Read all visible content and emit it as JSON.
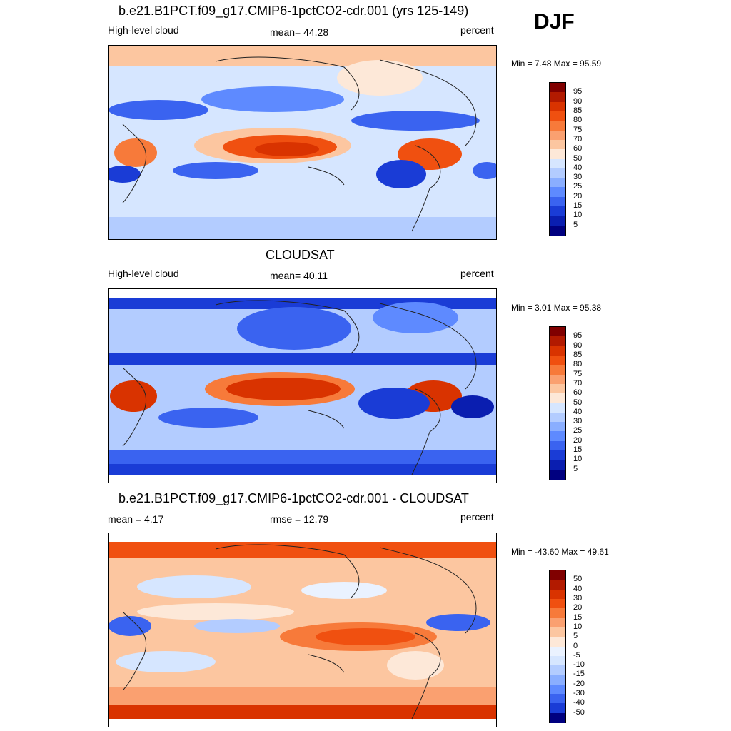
{
  "season": "DJF",
  "panels": [
    {
      "title": "b.e21.B1PCT.f09_g17.CMIP6-1pctCO2-cdr.001 (yrs 125-149)",
      "left": "High-level cloud",
      "center": "mean=  44.28",
      "right": "percent",
      "minmax": "Min =   7.48 Max =  95.59"
    },
    {
      "title": "CLOUDSAT",
      "left": "High-level cloud",
      "center": "mean=  40.11",
      "right": "percent",
      "minmax": "Min =   3.01 Max =  95.38"
    },
    {
      "title": "b.e21.B1PCT.f09_g17.CMIP6-1pctCO2-cdr.001 - CLOUDSAT",
      "left": "mean =   4.17",
      "center": "rmse =  12.79",
      "right": "percent",
      "minmax": "Min = -43.60 Max =  49.61"
    }
  ],
  "colorbars": {
    "abs": {
      "labels": [
        "95",
        "90",
        "85",
        "80",
        "75",
        "70",
        "60",
        "50",
        "40",
        "30",
        "25",
        "20",
        "15",
        "10",
        "5"
      ],
      "colors": [
        "#800000",
        "#b21a00",
        "#d93300",
        "#f05010",
        "#f77a3a",
        "#faa070",
        "#fcc6a0",
        "#fde8d8",
        "#d6e6ff",
        "#b3ccff",
        "#8aaeff",
        "#5e8aff",
        "#3a63f0",
        "#1a3cd6",
        "#0a1eb0",
        "#000080"
      ]
    },
    "diff": {
      "labels": [
        "50",
        "40",
        "30",
        "20",
        "15",
        "10",
        "5",
        "0",
        "-5",
        "-10",
        "-15",
        "-20",
        "-30",
        "-40",
        "-50"
      ],
      "colors": [
        "#800000",
        "#b21a00",
        "#d93300",
        "#f05010",
        "#f77a3a",
        "#faa070",
        "#fcc6a0",
        "#fde8d8",
        "#eaf2ff",
        "#d6e6ff",
        "#b3ccff",
        "#8aaeff",
        "#5e8aff",
        "#3a63f0",
        "#1a3cd6",
        "#000080"
      ]
    }
  }
}
